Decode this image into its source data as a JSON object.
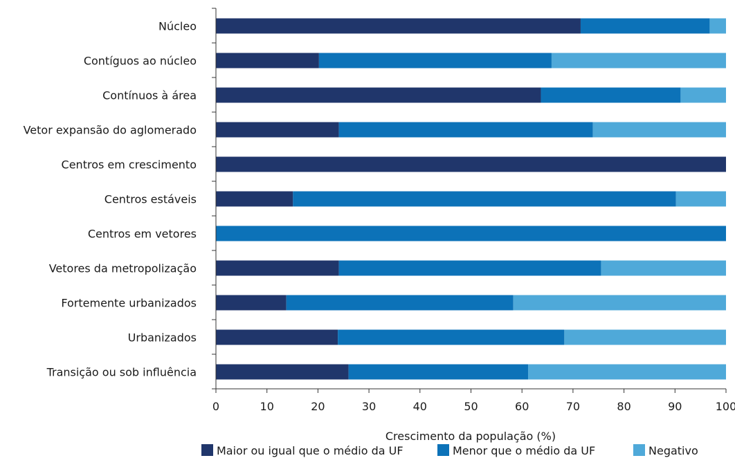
{
  "chart_data": {
    "type": "bar",
    "orientation": "horizontal",
    "stacked": true,
    "categories": [
      "Núcleo",
      "Contíguos ao núcleo",
      "Contínuos à área",
      "Vetor expansão do aglomerado",
      "Centros em crescimento",
      "Centros estáveis",
      "Centros em vetores",
      "Vetores da metropolização",
      "Fortemente urbanizados",
      "Urbanizados",
      "Transição ou sob influência"
    ],
    "series": [
      {
        "name": "Maior ou igual que o médio da UF",
        "color": "#20366b",
        "values": [
          71.5,
          20.2,
          63.7,
          24.1,
          100,
          15.1,
          0,
          24.1,
          13.8,
          23.9,
          26
        ]
      },
      {
        "name": "Menor que o médio da UF",
        "color": "#0c72b8",
        "values": [
          25.3,
          45.6,
          27.4,
          49.8,
          0,
          75.1,
          100,
          51.4,
          44.5,
          44.4,
          35.2
        ]
      },
      {
        "name": "Negativo",
        "color": "#4fa9d9",
        "values": [
          3.2,
          34.2,
          8.9,
          26.1,
          0,
          9.8,
          0,
          24.5,
          41.7,
          31.7,
          38.8
        ]
      }
    ],
    "xlabel": "Crescimento da população (%)",
    "ylabel": "",
    "xlim": [
      0,
      100
    ],
    "xticks": [
      0,
      10,
      20,
      30,
      40,
      50,
      60,
      70,
      80,
      90,
      100
    ],
    "grid": false,
    "legend_position": "bottom"
  }
}
